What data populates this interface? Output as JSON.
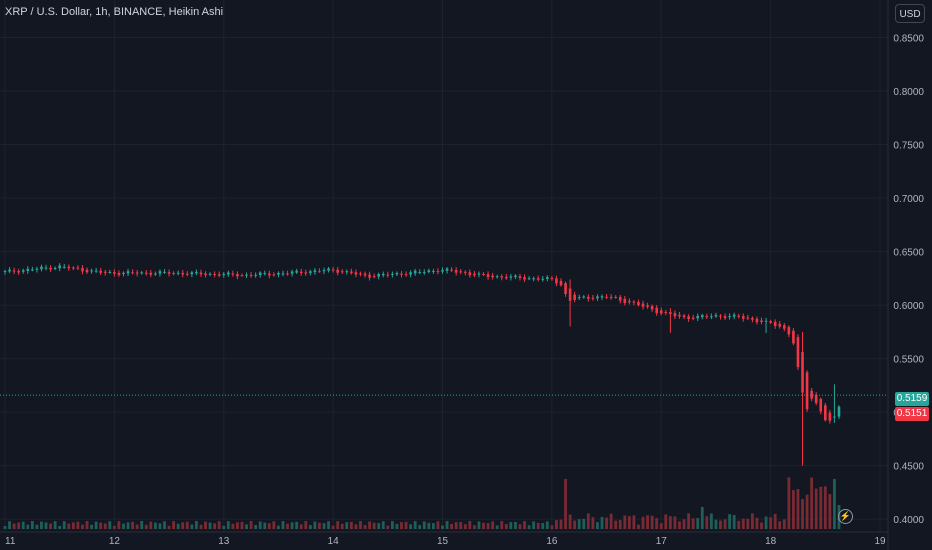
{
  "header": {
    "title": "XRP / U.S. Dollar, 1h, BINANCE, Heikin Ashi",
    "currency": "USD"
  },
  "price_labels": {
    "last": "0.5159",
    "open": "0.5151"
  },
  "colors": {
    "background": "#131722",
    "grid": "#1e222d",
    "up": "#26a69a",
    "down": "#f23645",
    "volume_up": "#1f5f5a",
    "volume_down": "#7a2a33",
    "text": "#b2b5be"
  },
  "icons": {
    "bolt": "lightning-icon"
  },
  "chart_data": {
    "type": "candlestick",
    "title": "XRP / U.S. Dollar, 1h, BINANCE, Heikin Ashi",
    "x_ticks": [
      "11",
      "12",
      "13",
      "14",
      "15",
      "16",
      "17",
      "18",
      "19"
    ],
    "y_ticks": [
      "0.4000",
      "0.4500",
      "0.5000",
      "0.5500",
      "0.6000",
      "0.6500",
      "0.7000",
      "0.7500",
      "0.8000",
      "0.8500"
    ],
    "ylim": [
      0.388,
      0.885
    ],
    "xlim": [
      11.0,
      19.0
    ],
    "grid": true,
    "last_price": 0.5159,
    "anchors": [
      {
        "t": 11.0,
        "p": 0.631
      },
      {
        "t": 11.5,
        "p": 0.636
      },
      {
        "t": 11.9,
        "p": 0.63
      },
      {
        "t": 12.5,
        "p": 0.63
      },
      {
        "t": 13.2,
        "p": 0.628
      },
      {
        "t": 13.6,
        "p": 0.63
      },
      {
        "t": 14.0,
        "p": 0.633
      },
      {
        "t": 14.3,
        "p": 0.627
      },
      {
        "t": 14.7,
        "p": 0.63
      },
      {
        "t": 15.0,
        "p": 0.633
      },
      {
        "t": 15.4,
        "p": 0.627
      },
      {
        "t": 16.0,
        "p": 0.624
      },
      {
        "t": 16.08,
        "p": 0.62
      },
      {
        "t": 16.15,
        "p": 0.604
      },
      {
        "t": 16.3,
        "p": 0.607
      },
      {
        "t": 16.5,
        "p": 0.608
      },
      {
        "t": 16.7,
        "p": 0.603
      },
      {
        "t": 17.0,
        "p": 0.593
      },
      {
        "t": 17.2,
        "p": 0.588
      },
      {
        "t": 17.5,
        "p": 0.59
      },
      {
        "t": 17.7,
        "p": 0.589
      },
      {
        "t": 17.9,
        "p": 0.585
      },
      {
        "t": 18.1,
        "p": 0.58
      },
      {
        "t": 18.2,
        "p": 0.57
      },
      {
        "t": 18.26,
        "p": 0.535
      },
      {
        "t": 18.32,
        "p": 0.5
      },
      {
        "t": 18.38,
        "p": 0.515
      },
      {
        "t": 18.45,
        "p": 0.502
      },
      {
        "t": 18.52,
        "p": 0.49
      },
      {
        "t": 18.6,
        "p": 0.495
      },
      {
        "t": 18.65,
        "p": 0.515
      }
    ],
    "spikes": [
      {
        "t": 16.15,
        "low": 0.58,
        "high": 0.624
      },
      {
        "t": 17.1,
        "low": 0.574,
        "high": 0.597
      },
      {
        "t": 17.95,
        "low": 0.574,
        "high": 0.588
      },
      {
        "t": 18.28,
        "low": 0.45,
        "high": 0.575
      },
      {
        "t": 18.6,
        "low": 0.49,
        "high": 0.526
      }
    ],
    "volume_spikes": [
      {
        "t": 16.12,
        "h": 50
      },
      {
        "t": 17.38,
        "h": 22
      },
      {
        "t": 18.25,
        "h": 40
      },
      {
        "t": 18.3,
        "h": 30
      },
      {
        "t": 18.62,
        "h": 24
      }
    ]
  }
}
